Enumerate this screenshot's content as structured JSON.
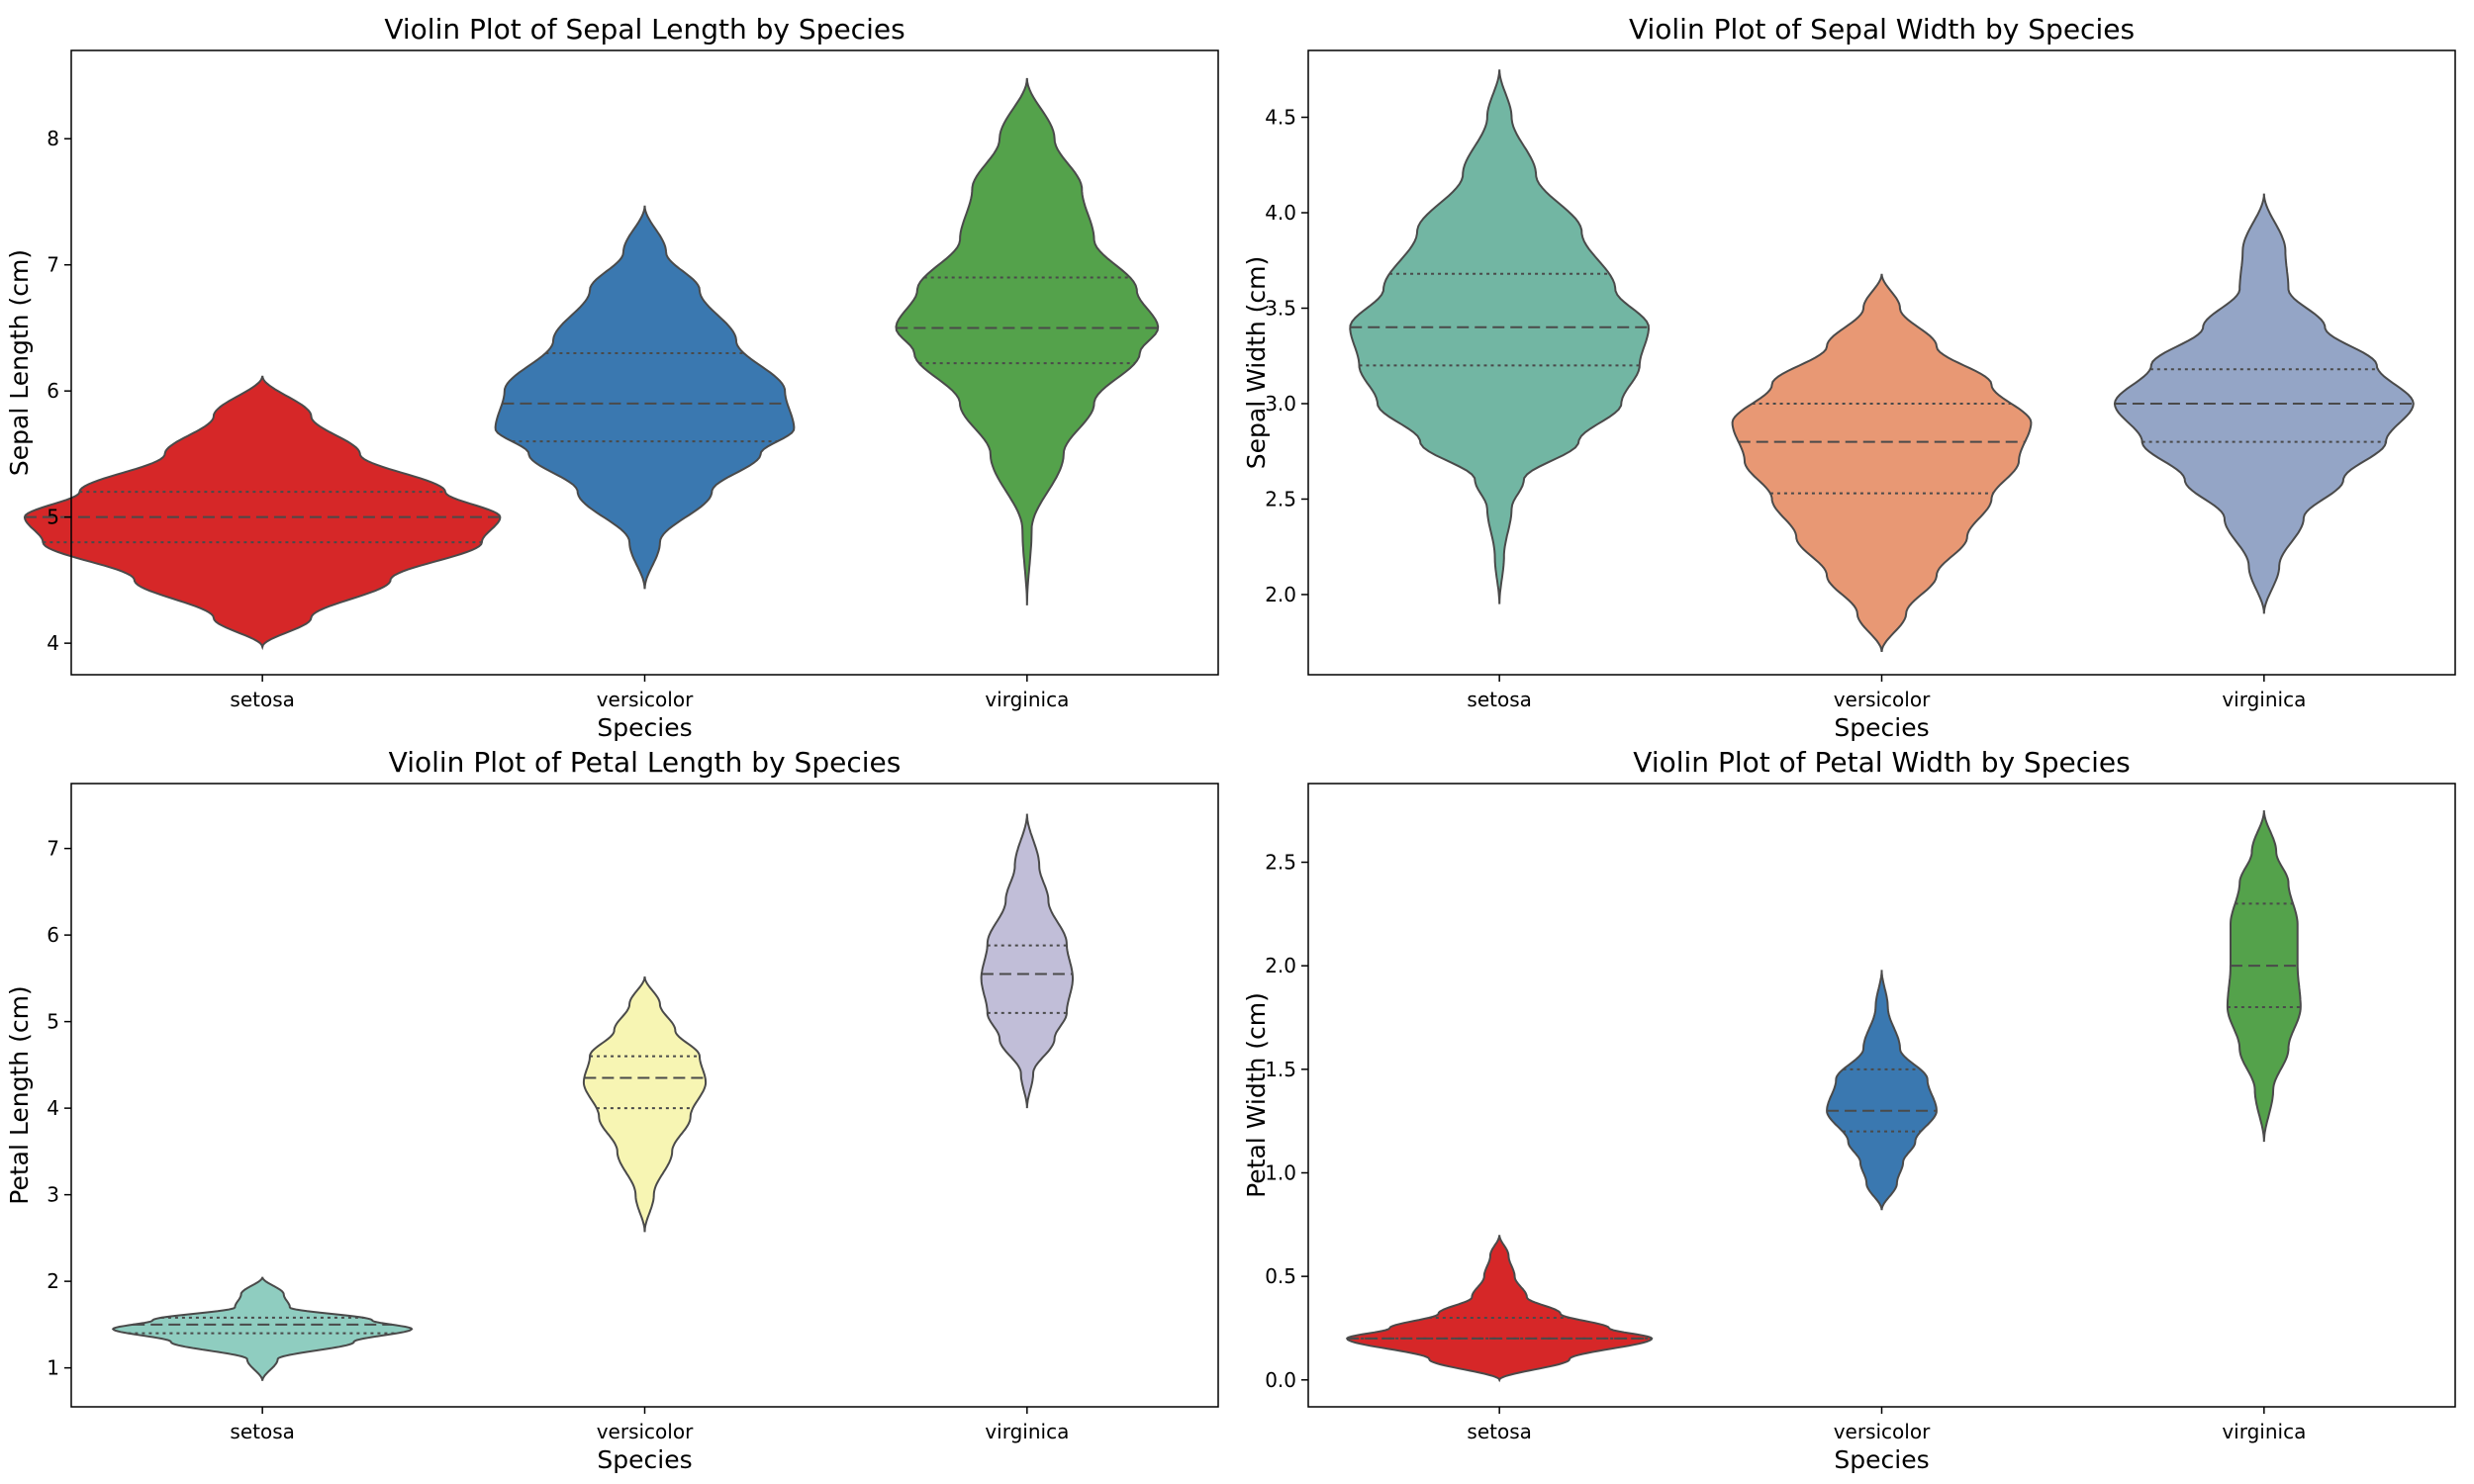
{
  "chart_data": [
    {
      "type": "violin",
      "title": "Violin Plot of Sepal Length by Species",
      "xlabel": "Species",
      "ylabel": "Sepal Length (cm)",
      "categories": [
        "setosa",
        "versicolor",
        "virginica"
      ],
      "ylim": [
        3.75,
        8.7
      ],
      "yticks": [
        "4",
        "5",
        "6",
        "7",
        "8"
      ],
      "colors": [
        "#d62728",
        "#3a78b0",
        "#54a24b"
      ],
      "violins": [
        {
          "name": "setosa",
          "min": 3.97,
          "max": 6.12,
          "q1": 4.8,
          "median": 5.0,
          "q3": 5.2,
          "profile": [
            [
              3.97,
              0
            ],
            [
              4.2,
              0.16
            ],
            [
              4.5,
              0.42
            ],
            [
              4.8,
              0.72
            ],
            [
              5.0,
              0.78
            ],
            [
              5.2,
              0.6
            ],
            [
              5.5,
              0.32
            ],
            [
              5.8,
              0.16
            ],
            [
              6.12,
              0
            ]
          ]
        },
        {
          "name": "versicolor",
          "min": 4.43,
          "max": 7.47,
          "q1": 5.6,
          "median": 5.9,
          "q3": 6.3,
          "profile": [
            [
              4.43,
              0
            ],
            [
              4.8,
              0.05
            ],
            [
              5.2,
              0.22
            ],
            [
              5.5,
              0.38
            ],
            [
              5.7,
              0.49
            ],
            [
              6.0,
              0.46
            ],
            [
              6.4,
              0.3
            ],
            [
              6.8,
              0.18
            ],
            [
              7.1,
              0.07
            ],
            [
              7.47,
              0
            ]
          ]
        },
        {
          "name": "virginica",
          "min": 4.3,
          "max": 8.48,
          "q1": 6.22,
          "median": 6.5,
          "q3": 6.9,
          "profile": [
            [
              4.3,
              0
            ],
            [
              4.9,
              0.015
            ],
            [
              5.5,
              0.12
            ],
            [
              5.9,
              0.22
            ],
            [
              6.3,
              0.37
            ],
            [
              6.5,
              0.43
            ],
            [
              6.8,
              0.36
            ],
            [
              7.2,
              0.22
            ],
            [
              7.6,
              0.18
            ],
            [
              8.0,
              0.09
            ],
            [
              8.48,
              0
            ]
          ]
        }
      ]
    },
    {
      "type": "violin",
      "title": "Violin Plot of Sepal Width by Species",
      "xlabel": "Species",
      "ylabel": "Sepal Width (cm)",
      "categories": [
        "setosa",
        "versicolor",
        "virginica"
      ],
      "ylim": [
        1.58,
        4.85
      ],
      "yticks": [
        "2.0",
        "2.5",
        "3.0",
        "3.5",
        "4.0",
        "4.5"
      ],
      "colors": [
        "#72b6a3",
        "#e89874",
        "#94a5c6"
      ],
      "violins": [
        {
          "name": "setosa",
          "min": 1.95,
          "max": 4.75,
          "q1": 3.2,
          "median": 3.4,
          "q3": 3.68,
          "profile": [
            [
              1.95,
              0
            ],
            [
              2.2,
              0.015
            ],
            [
              2.45,
              0.04
            ],
            [
              2.6,
              0.08
            ],
            [
              2.8,
              0.26
            ],
            [
              3.0,
              0.4
            ],
            [
              3.2,
              0.46
            ],
            [
              3.4,
              0.49
            ],
            [
              3.6,
              0.38
            ],
            [
              3.9,
              0.27
            ],
            [
              4.2,
              0.12
            ],
            [
              4.5,
              0.04
            ],
            [
              4.75,
              0
            ]
          ]
        },
        {
          "name": "versicolor",
          "min": 1.7,
          "max": 3.68,
          "q1": 2.53,
          "median": 2.8,
          "q3": 3.0,
          "profile": [
            [
              1.7,
              0
            ],
            [
              1.9,
              0.08
            ],
            [
              2.1,
              0.18
            ],
            [
              2.3,
              0.28
            ],
            [
              2.5,
              0.36
            ],
            [
              2.7,
              0.45
            ],
            [
              2.9,
              0.49
            ],
            [
              3.1,
              0.36
            ],
            [
              3.3,
              0.18
            ],
            [
              3.5,
              0.06
            ],
            [
              3.68,
              0
            ]
          ]
        },
        {
          "name": "virginica",
          "min": 1.9,
          "max": 4.1,
          "q1": 2.8,
          "median": 3.0,
          "q3": 3.18,
          "profile": [
            [
              1.9,
              0
            ],
            [
              2.15,
              0.05
            ],
            [
              2.4,
              0.13
            ],
            [
              2.6,
              0.26
            ],
            [
              2.8,
              0.4
            ],
            [
              3.0,
              0.49
            ],
            [
              3.2,
              0.37
            ],
            [
              3.4,
              0.2
            ],
            [
              3.6,
              0.08
            ],
            [
              3.8,
              0.07
            ],
            [
              4.1,
              0
            ]
          ]
        }
      ]
    },
    {
      "type": "violin",
      "title": "Violin Plot of Petal Length by Species",
      "xlabel": "Species",
      "ylabel": "Petal Length (cm)",
      "categories": [
        "setosa",
        "versicolor",
        "virginica"
      ],
      "ylim": [
        0.55,
        7.75
      ],
      "yticks": [
        "1",
        "2",
        "3",
        "4",
        "5",
        "6",
        "7"
      ],
      "colors": [
        "#8fcdc0",
        "#f7f5b3",
        "#c1bed8"
      ],
      "violins": [
        {
          "name": "setosa",
          "min": 0.85,
          "max": 2.05,
          "q1": 1.4,
          "median": 1.5,
          "q3": 1.58,
          "profile": [
            [
              0.85,
              0
            ],
            [
              1.1,
              0.05
            ],
            [
              1.3,
              0.3
            ],
            [
              1.45,
              0.49
            ],
            [
              1.55,
              0.36
            ],
            [
              1.7,
              0.09
            ],
            [
              1.85,
              0.07
            ],
            [
              2.05,
              0
            ]
          ]
        },
        {
          "name": "versicolor",
          "min": 2.57,
          "max": 5.52,
          "q1": 4.0,
          "median": 4.35,
          "q3": 4.6,
          "profile": [
            [
              2.57,
              0
            ],
            [
              3.0,
              0.03
            ],
            [
              3.5,
              0.09
            ],
            [
              3.9,
              0.15
            ],
            [
              4.3,
              0.2
            ],
            [
              4.6,
              0.18
            ],
            [
              4.9,
              0.1
            ],
            [
              5.2,
              0.05
            ],
            [
              5.52,
              0
            ]
          ]
        },
        {
          "name": "virginica",
          "min": 4.0,
          "max": 7.4,
          "q1": 5.1,
          "median": 5.55,
          "q3": 5.88,
          "profile": [
            [
              4.0,
              0
            ],
            [
              4.4,
              0.02
            ],
            [
              4.8,
              0.09
            ],
            [
              5.1,
              0.13
            ],
            [
              5.5,
              0.15
            ],
            [
              5.9,
              0.13
            ],
            [
              6.4,
              0.07
            ],
            [
              6.8,
              0.04
            ],
            [
              7.4,
              0
            ]
          ]
        }
      ]
    },
    {
      "type": "violin",
      "title": "Violin Plot of Petal Width by Species",
      "xlabel": "Species",
      "ylabel": "Petal Width (cm)",
      "categories": [
        "setosa",
        "versicolor",
        "virginica"
      ],
      "ylim": [
        -0.13,
        2.88
      ],
      "yticks": [
        "0.0",
        "0.5",
        "1.0",
        "1.5",
        "2.0",
        "2.5"
      ],
      "colors": [
        "#d62728",
        "#3a78b0",
        "#54a24b"
      ],
      "violins": [
        {
          "name": "setosa",
          "min": 0.0,
          "max": 0.7,
          "q1": 0.2,
          "median": 0.2,
          "q3": 0.3,
          "profile": [
            [
              0.0,
              0
            ],
            [
              0.1,
              0.23
            ],
            [
              0.2,
              0.5
            ],
            [
              0.25,
              0.36
            ],
            [
              0.32,
              0.2
            ],
            [
              0.4,
              0.09
            ],
            [
              0.5,
              0.05
            ],
            [
              0.6,
              0.03
            ],
            [
              0.7,
              0
            ]
          ]
        },
        {
          "name": "versicolor",
          "min": 0.82,
          "max": 1.98,
          "q1": 1.2,
          "median": 1.3,
          "q3": 1.5,
          "profile": [
            [
              0.82,
              0
            ],
            [
              0.95,
              0.05
            ],
            [
              1.05,
              0.07
            ],
            [
              1.15,
              0.11
            ],
            [
              1.3,
              0.18
            ],
            [
              1.45,
              0.15
            ],
            [
              1.6,
              0.06
            ],
            [
              1.8,
              0.02
            ],
            [
              1.98,
              0
            ]
          ]
        },
        {
          "name": "virginica",
          "min": 1.15,
          "max": 2.75,
          "q1": 1.8,
          "median": 2.0,
          "q3": 2.3,
          "profile": [
            [
              1.15,
              0
            ],
            [
              1.4,
              0.03
            ],
            [
              1.6,
              0.08
            ],
            [
              1.8,
              0.12
            ],
            [
              2.0,
              0.11
            ],
            [
              2.2,
              0.11
            ],
            [
              2.4,
              0.08
            ],
            [
              2.55,
              0.04
            ],
            [
              2.75,
              0
            ]
          ]
        }
      ]
    }
  ]
}
